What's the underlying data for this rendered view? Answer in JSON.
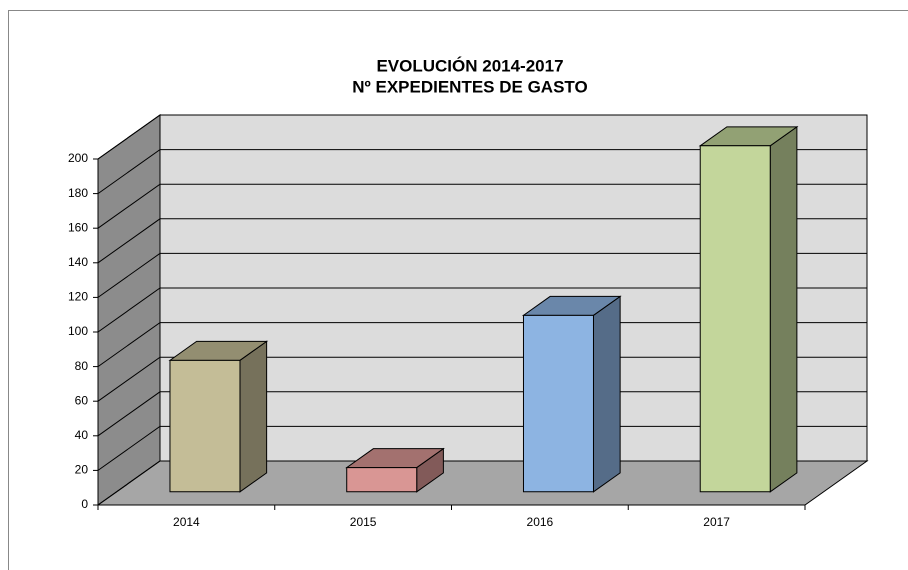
{
  "chart_data": {
    "type": "bar3d",
    "title": [
      "EVOLUCIÓN 2014-2017",
      "Nº EXPEDIENTES DE GASTO"
    ],
    "categories": [
      "2014",
      "2015",
      "2016",
      "2017"
    ],
    "values": [
      76,
      14,
      102,
      200
    ],
    "colors": [
      "#c4bd97",
      "#d99694",
      "#8db4e2",
      "#c3d69b"
    ],
    "ylim": [
      0,
      200
    ],
    "yticks": [
      0,
      20,
      40,
      60,
      80,
      100,
      120,
      140,
      160,
      180,
      200
    ],
    "grid": true
  }
}
